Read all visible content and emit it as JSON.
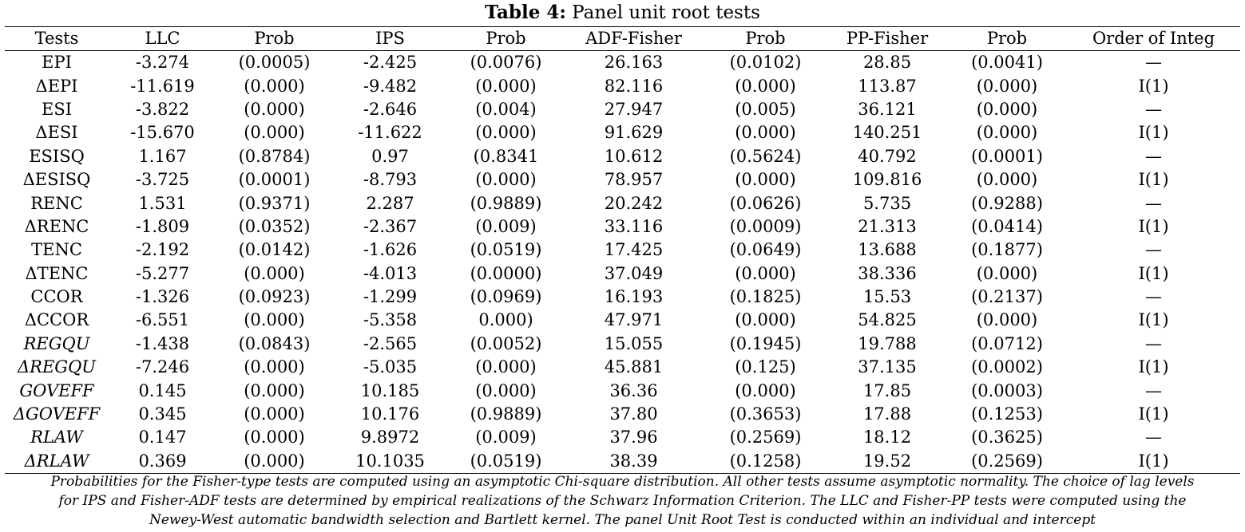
{
  "title": {
    "label": "Table 4:",
    "text": "Panel unit root tests"
  },
  "columns": [
    "Tests",
    "LLC",
    "Prob",
    "IPS",
    "Prob",
    "ADF-Fisher",
    "Prob",
    "PP-Fisher",
    "Prob",
    "Order of Integ"
  ],
  "rows": [
    {
      "cells": [
        "EPI",
        "-3.274",
        "(0.0005)",
        "-2.425",
        "(0.0076)",
        "26.163",
        "(0.0102)",
        "28.85",
        "(0.0041)",
        "—"
      ],
      "italic": false
    },
    {
      "cells": [
        "ΔEPI",
        "-11.619",
        "(0.000)",
        "-9.482",
        "(0.000)",
        "82.116",
        "(0.000)",
        "113.87",
        "(0.000)",
        "I(1)"
      ],
      "italic": false
    },
    {
      "cells": [
        "ESI",
        "-3.822",
        "(0.000)",
        "-2.646",
        "(0.004)",
        "27.947",
        "(0.005)",
        "36.121",
        "(0.000)",
        "—"
      ],
      "italic": false
    },
    {
      "cells": [
        "ΔESI",
        "-15.670",
        "(0.000)",
        "-11.622",
        "(0.000)",
        "91.629",
        "(0.000)",
        "140.251",
        "(0.000)",
        "I(1)"
      ],
      "italic": false
    },
    {
      "cells": [
        "ESISQ",
        "1.167",
        "(0.8784)",
        "0.97",
        "(0.8341",
        "10.612",
        "(0.5624)",
        "40.792",
        "(0.0001)",
        "—"
      ],
      "italic": false
    },
    {
      "cells": [
        "ΔESISQ",
        "-3.725",
        "(0.0001)",
        "-8.793",
        "(0.000)",
        "78.957",
        "(0.000)",
        "109.816",
        "(0.000)",
        "I(1)"
      ],
      "italic": false
    },
    {
      "cells": [
        "RENC",
        "1.531",
        "(0.9371)",
        "2.287",
        "(0.9889)",
        "20.242",
        "(0.0626)",
        "5.735",
        "(0.9288)",
        "—"
      ],
      "italic": false
    },
    {
      "cells": [
        "ΔRENC",
        "-1.809",
        "(0.0352)",
        "-2.367",
        "(0.009)",
        "33.116",
        "(0.0009)",
        "21.313",
        "(0.0414)",
        "I(1)"
      ],
      "italic": false
    },
    {
      "cells": [
        "TENC",
        "-2.192",
        "(0.0142)",
        "-1.626",
        "(0.0519)",
        "17.425",
        "(0.0649)",
        "13.688",
        "(0.1877)",
        "—"
      ],
      "italic": false
    },
    {
      "cells": [
        "ΔTENC",
        "-5.277",
        "(0.000)",
        "-4.013",
        "(0.0000)",
        "37.049",
        "(0.000)",
        "38.336",
        "(0.000)",
        "I(1)"
      ],
      "italic": false
    },
    {
      "cells": [
        "CCOR",
        "-1.326",
        "(0.0923)",
        "-1.299",
        "(0.0969)",
        "16.193",
        "(0.1825)",
        "15.53",
        "(0.2137)",
        "—"
      ],
      "italic": false
    },
    {
      "cells": [
        "ΔCCOR",
        "-6.551",
        "(0.000)",
        "-5.358",
        "0.000)",
        "47.971",
        "(0.000)",
        "54.825",
        "(0.000)",
        "I(1)"
      ],
      "italic": false
    },
    {
      "cells": [
        "REGQU",
        "-1.438",
        "(0.0843)",
        "-2.565",
        "(0.0052)",
        "15.055",
        "(0.1945)",
        "19.788",
        "(0.0712)",
        "—"
      ],
      "italic": true
    },
    {
      "cells": [
        "ΔREGQU",
        "-7.246",
        "(0.000)",
        "-5.035",
        "(0.000)",
        "45.881",
        "(0.125)",
        "37.135",
        "(0.0002)",
        "I(1)"
      ],
      "italic": true
    },
    {
      "cells": [
        "GOVEFF",
        "0.145",
        "(0.000)",
        "10.185",
        "(0.000)",
        "36.36",
        "(0.000)",
        "17.85",
        "(0.0003)",
        "—"
      ],
      "italic": true
    },
    {
      "cells": [
        "ΔGOVEFF",
        "0.345",
        "(0.000)",
        "10.176",
        "(0.9889)",
        "37.80",
        "(0.3653)",
        "17.88",
        "(0.1253)",
        "I(1)"
      ],
      "italic": true
    },
    {
      "cells": [
        "RLAW",
        "0.147",
        "(0.000)",
        "9.8972",
        "(0.009)",
        "37.96",
        "(0.2569)",
        "18.12",
        "(0.3625)",
        "—"
      ],
      "italic": true
    },
    {
      "cells": [
        "ΔRLAW",
        "0.369",
        "(0.000)",
        "10.1035",
        "(0.0519)",
        "38.39",
        "(0.1258)",
        "19.52",
        "(0.2569)",
        "I(1)"
      ],
      "italic": true
    }
  ],
  "note": {
    "line1": "Probabilities for the Fisher-type tests are computed using an asymptotic Chi-square distribution. All other tests assume asymptotic normality. The choice of lag levels",
    "line2": "for IPS and Fisher-ADF tests are determined by empirical realizations of the Schwarz Information Criterion. The LLC and Fisher-PP tests were computed using the",
    "line3": "Newey-West automatic bandwidth selection and Bartlett kernel. The panel Unit Root Test is conducted within an individual and intercept"
  }
}
